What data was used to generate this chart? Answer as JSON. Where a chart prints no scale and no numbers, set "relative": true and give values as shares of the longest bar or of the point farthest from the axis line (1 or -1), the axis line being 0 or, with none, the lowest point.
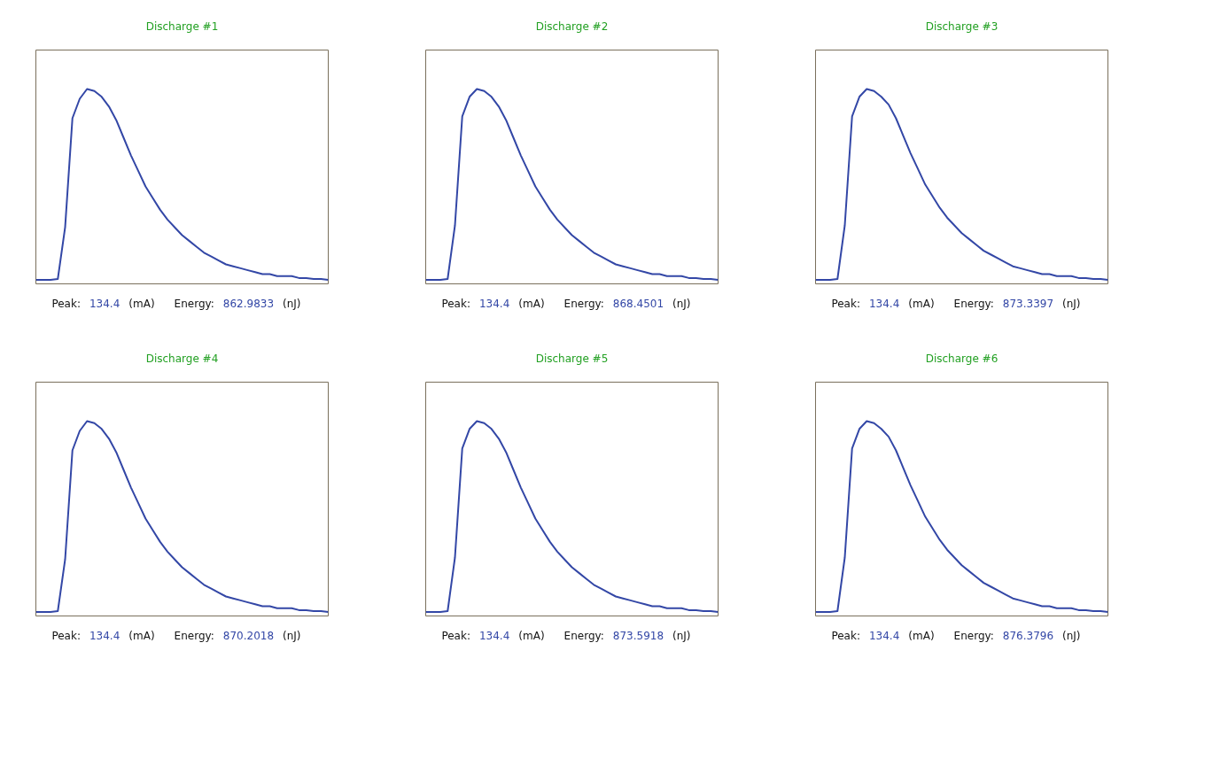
{
  "chart_data": [
    {
      "type": "line",
      "title": "Discharge #1",
      "relative": true,
      "grid": false,
      "annotations": [
        "Peak:",
        "134.4",
        "(mA)",
        "Energy:",
        "862.9833",
        "(nJ)"
      ],
      "categories": [
        null,
        null,
        null,
        null,
        null,
        null,
        null,
        null,
        null,
        null,
        null,
        null,
        null,
        null,
        null,
        null,
        null,
        null,
        null,
        null,
        null,
        null,
        null,
        null,
        null,
        null,
        null,
        null,
        null,
        null,
        null,
        null,
        null,
        null,
        null,
        null,
        null,
        null,
        null,
        null,
        null
      ],
      "series": [
        {
          "color": "#3347a6",
          "values": [
            0.02,
            0.02,
            0.02,
            0.025,
            0.29,
            0.85,
            0.95,
            1.0,
            0.99,
            0.96,
            0.91,
            0.84,
            0.75,
            0.66,
            0.58,
            0.5,
            0.44,
            0.38,
            0.33,
            0.29,
            0.25,
            0.22,
            0.19,
            0.16,
            0.14,
            0.12,
            0.1,
            0.09,
            0.08,
            0.07,
            0.06,
            0.05,
            0.05,
            0.04,
            0.04,
            0.04,
            0.03,
            0.03,
            0.025,
            0.025,
            0.02
          ]
        }
      ]
    },
    {
      "type": "line",
      "title": "Discharge #2",
      "relative": true,
      "grid": false,
      "annotations": [
        "Peak:",
        "134.4",
        "(mA)",
        "Energy:",
        "868.4501",
        "(nJ)"
      ],
      "categories": [
        null,
        null,
        null,
        null,
        null,
        null,
        null,
        null,
        null,
        null,
        null,
        null,
        null,
        null,
        null,
        null,
        null,
        null,
        null,
        null,
        null,
        null,
        null,
        null,
        null,
        null,
        null,
        null,
        null,
        null,
        null,
        null,
        null,
        null,
        null,
        null,
        null,
        null,
        null,
        null,
        null
      ],
      "series": [
        {
          "color": "#3347a6",
          "values": [
            0.02,
            0.02,
            0.02,
            0.025,
            0.3,
            0.86,
            0.96,
            1.0,
            0.99,
            0.96,
            0.91,
            0.84,
            0.75,
            0.66,
            0.58,
            0.5,
            0.44,
            0.38,
            0.33,
            0.29,
            0.25,
            0.22,
            0.19,
            0.16,
            0.14,
            0.12,
            0.1,
            0.09,
            0.08,
            0.07,
            0.06,
            0.05,
            0.05,
            0.04,
            0.04,
            0.04,
            0.03,
            0.03,
            0.025,
            0.025,
            0.02
          ]
        }
      ]
    },
    {
      "type": "line",
      "title": "Discharge #3",
      "relative": true,
      "grid": false,
      "annotations": [
        "Peak:",
        "134.4",
        "(mA)",
        "Energy:",
        "873.3397",
        "(nJ)"
      ],
      "categories": [
        null,
        null,
        null,
        null,
        null,
        null,
        null,
        null,
        null,
        null,
        null,
        null,
        null,
        null,
        null,
        null,
        null,
        null,
        null,
        null,
        null,
        null,
        null,
        null,
        null,
        null,
        null,
        null,
        null,
        null,
        null,
        null,
        null,
        null,
        null,
        null,
        null,
        null,
        null,
        null,
        null
      ],
      "series": [
        {
          "color": "#3347a6",
          "values": [
            0.02,
            0.02,
            0.02,
            0.025,
            0.3,
            0.86,
            0.96,
            1.0,
            0.99,
            0.96,
            0.92,
            0.85,
            0.76,
            0.67,
            0.59,
            0.51,
            0.45,
            0.39,
            0.34,
            0.3,
            0.26,
            0.23,
            0.2,
            0.17,
            0.15,
            0.13,
            0.11,
            0.09,
            0.08,
            0.07,
            0.06,
            0.05,
            0.05,
            0.04,
            0.04,
            0.04,
            0.03,
            0.03,
            0.025,
            0.025,
            0.02
          ]
        }
      ]
    },
    {
      "type": "line",
      "title": "Discharge #4",
      "relative": true,
      "grid": false,
      "annotations": [
        "Peak:",
        "134.4",
        "(mA)",
        "Energy:",
        "870.2018",
        "(nJ)"
      ],
      "categories": [
        null,
        null,
        null,
        null,
        null,
        null,
        null,
        null,
        null,
        null,
        null,
        null,
        null,
        null,
        null,
        null,
        null,
        null,
        null,
        null,
        null,
        null,
        null,
        null,
        null,
        null,
        null,
        null,
        null,
        null,
        null,
        null,
        null,
        null,
        null,
        null,
        null,
        null,
        null,
        null,
        null
      ],
      "series": [
        {
          "color": "#3347a6",
          "values": [
            0.02,
            0.02,
            0.02,
            0.025,
            0.29,
            0.85,
            0.95,
            1.0,
            0.99,
            0.96,
            0.91,
            0.84,
            0.75,
            0.66,
            0.58,
            0.5,
            0.44,
            0.38,
            0.33,
            0.29,
            0.25,
            0.22,
            0.19,
            0.16,
            0.14,
            0.12,
            0.1,
            0.09,
            0.08,
            0.07,
            0.06,
            0.05,
            0.05,
            0.04,
            0.04,
            0.04,
            0.03,
            0.03,
            0.025,
            0.025,
            0.02
          ]
        }
      ]
    },
    {
      "type": "line",
      "title": "Discharge #5",
      "relative": true,
      "grid": false,
      "annotations": [
        "Peak:",
        "134.4",
        "(mA)",
        "Energy:",
        "873.5918",
        "(nJ)"
      ],
      "categories": [
        null,
        null,
        null,
        null,
        null,
        null,
        null,
        null,
        null,
        null,
        null,
        null,
        null,
        null,
        null,
        null,
        null,
        null,
        null,
        null,
        null,
        null,
        null,
        null,
        null,
        null,
        null,
        null,
        null,
        null,
        null,
        null,
        null,
        null,
        null,
        null,
        null,
        null,
        null,
        null,
        null
      ],
      "series": [
        {
          "color": "#3347a6",
          "values": [
            0.02,
            0.02,
            0.02,
            0.025,
            0.3,
            0.86,
            0.96,
            1.0,
            0.99,
            0.96,
            0.91,
            0.84,
            0.75,
            0.66,
            0.58,
            0.5,
            0.44,
            0.38,
            0.33,
            0.29,
            0.25,
            0.22,
            0.19,
            0.16,
            0.14,
            0.12,
            0.1,
            0.09,
            0.08,
            0.07,
            0.06,
            0.05,
            0.05,
            0.04,
            0.04,
            0.04,
            0.03,
            0.03,
            0.025,
            0.025,
            0.02
          ]
        }
      ]
    },
    {
      "type": "line",
      "title": "Discharge #6",
      "relative": true,
      "grid": false,
      "annotations": [
        "Peak:",
        "134.4",
        "(mA)",
        "Energy:",
        "876.3796",
        "(nJ)"
      ],
      "categories": [
        null,
        null,
        null,
        null,
        null,
        null,
        null,
        null,
        null,
        null,
        null,
        null,
        null,
        null,
        null,
        null,
        null,
        null,
        null,
        null,
        null,
        null,
        null,
        null,
        null,
        null,
        null,
        null,
        null,
        null,
        null,
        null,
        null,
        null,
        null,
        null,
        null,
        null,
        null,
        null,
        null
      ],
      "series": [
        {
          "color": "#3347a6",
          "values": [
            0.02,
            0.02,
            0.02,
            0.025,
            0.3,
            0.86,
            0.96,
            1.0,
            0.99,
            0.96,
            0.92,
            0.85,
            0.76,
            0.67,
            0.59,
            0.51,
            0.45,
            0.39,
            0.34,
            0.3,
            0.26,
            0.23,
            0.2,
            0.17,
            0.15,
            0.13,
            0.11,
            0.09,
            0.08,
            0.07,
            0.06,
            0.05,
            0.05,
            0.04,
            0.04,
            0.04,
            0.03,
            0.03,
            0.025,
            0.025,
            0.02
          ]
        }
      ]
    }
  ]
}
